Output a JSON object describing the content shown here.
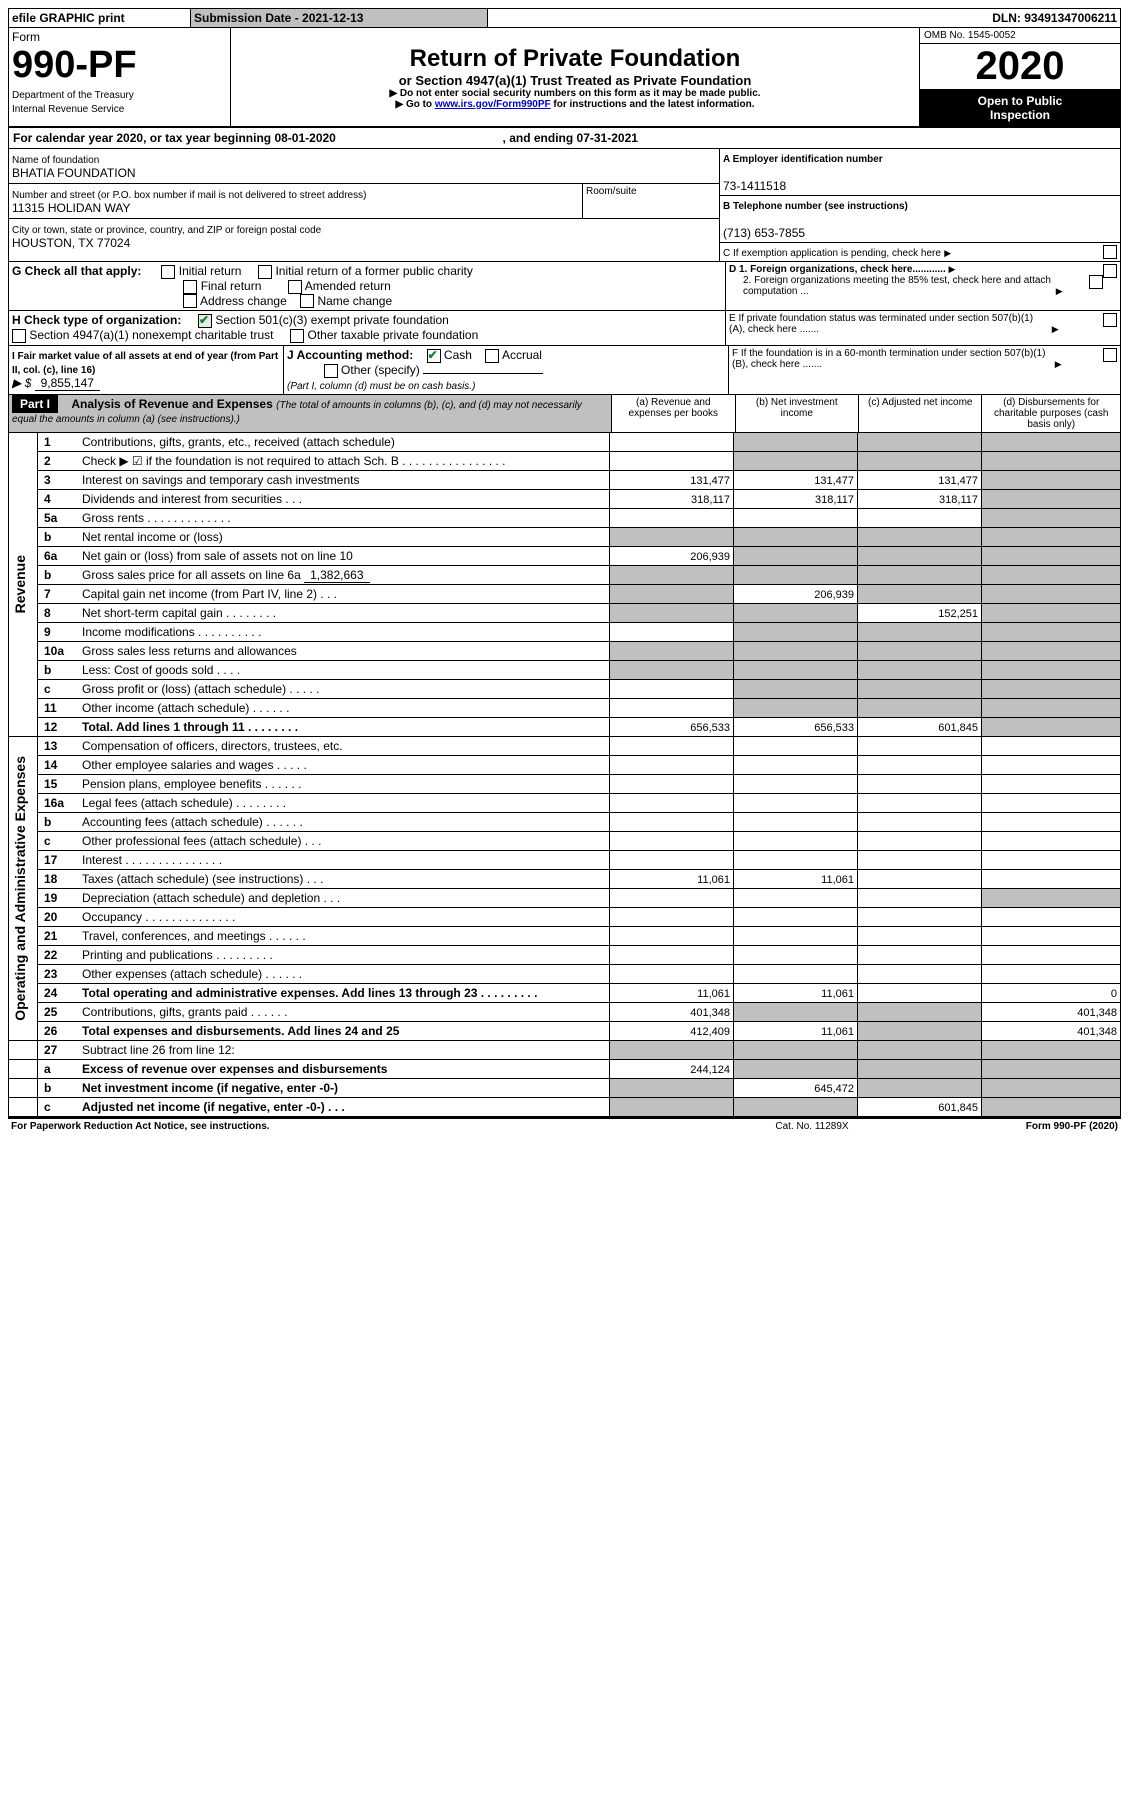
{
  "topbar": {
    "efile": "efile GRAPHIC print",
    "subdate_label": "Submission Date - ",
    "subdate": "2021-12-13",
    "dln_label": "DLN: ",
    "dln": "93491347006211"
  },
  "header": {
    "form_word": "Form",
    "form_number": "990-PF",
    "dept": "Department of the Treasury",
    "irs": "Internal Revenue Service",
    "title": "Return of Private Foundation",
    "subtitle": "or Section 4947(a)(1) Trust Treated as Private Foundation",
    "note1": "▶ Do not enter social security numbers on this form as it may be made public.",
    "note2_pre": "▶ Go to ",
    "note2_link": "www.irs.gov/Form990PF",
    "note2_post": " for instructions and the latest information.",
    "omb": "OMB No. 1545-0052",
    "year": "2020",
    "open": "Open to Public",
    "inspection": "Inspection"
  },
  "calendar": {
    "prefix": "For calendar year 2020, or tax year beginning ",
    "begin": "08-01-2020",
    "mid": " , and ending ",
    "end": "07-31-2021"
  },
  "entity": {
    "name_label": "Name of foundation",
    "name": "BHATIA FOUNDATION",
    "addr_label": "Number and street (or P.O. box number if mail is not delivered to street address)",
    "addr": "11315 HOLIDAN WAY",
    "room_label": "Room/suite",
    "city_label": "City or town, state or province, country, and ZIP or foreign postal code",
    "city": "HOUSTON, TX  77024",
    "ein_label": "A Employer identification number",
    "ein": "73-1411518",
    "phone_label": "B Telephone number (see instructions)",
    "phone": "(713) 653-7855",
    "c_label": "C If exemption application is pending, check here",
    "d1": "D 1. Foreign organizations, check here............",
    "d2": "2. Foreign organizations meeting the 85% test, check here and attach computation ...",
    "e_label": "E  If private foundation status was terminated under section 507(b)(1)(A), check here .......",
    "f_label": "F  If the foundation is in a 60-month termination under section 507(b)(1)(B), check here .......",
    "g_label": "G Check all that apply:",
    "g_opts": {
      "initial": "Initial return",
      "initial_pub": "Initial return of a former public charity",
      "final": "Final return",
      "amended": "Amended return",
      "addr_change": "Address change",
      "name_change": "Name change"
    },
    "h_label": "H Check type of organization:",
    "h_opts": {
      "501c3": "Section 501(c)(3) exempt private foundation",
      "4947": "Section 4947(a)(1) nonexempt charitable trust",
      "other_tax": "Other taxable private foundation"
    },
    "i_label": "I Fair market value of all assets at end of year (from Part II, col. (c), line 16)",
    "i_prefix": "▶ $",
    "i_value": "9,855,147",
    "j_label": "J Accounting method:",
    "j_cash": "Cash",
    "j_accrual": "Accrual",
    "j_other": "Other (specify)",
    "j_note": "(Part I, column (d) must be on cash basis.)"
  },
  "part1": {
    "label": "Part I",
    "heading": "Analysis of Revenue and Expenses",
    "heading_note": " (The total of amounts in columns (b), (c), and (d) may not necessarily equal the amounts in column (a) (see instructions).)",
    "cols": {
      "a": "(a) Revenue and expenses per books",
      "b": "(b) Net investment income",
      "c": "(c) Adjusted net income",
      "d": "(d) Disbursements for charitable purposes (cash basis only)"
    }
  },
  "sections": {
    "revenue": "Revenue",
    "opex": "Operating and Administrative Expenses"
  },
  "rows": {
    "1": {
      "n": "1",
      "t": "Contributions, gifts, grants, etc., received (attach schedule)"
    },
    "2": {
      "n": "2",
      "t": "Check ▶ ☑ if the foundation is not required to attach Sch. B   .  .  .  .  .  .  .  .  .  .  .  .  .  .  .  ."
    },
    "3": {
      "n": "3",
      "t": "Interest on savings and temporary cash investments",
      "a": "131,477",
      "b": "131,477",
      "c": "131,477"
    },
    "4": {
      "n": "4",
      "t": "Dividends and interest from securities    .   .   .",
      "a": "318,117",
      "b": "318,117",
      "c": "318,117"
    },
    "5a": {
      "n": "5a",
      "t": "Gross rents   .  .  .  .  .  .  .  .  .  .  .  .  ."
    },
    "5b": {
      "n": "b",
      "t": "Net rental income or (loss)"
    },
    "6a": {
      "n": "6a",
      "t": "Net gain or (loss) from sale of assets not on line 10",
      "a": "206,939"
    },
    "6b": {
      "n": "b",
      "t": "Gross sales price for all assets on line 6a",
      "inline": "1,382,663"
    },
    "7": {
      "n": "7",
      "t": "Capital gain net income (from Part IV, line 2)   .   .   .",
      "b": "206,939"
    },
    "8": {
      "n": "8",
      "t": "Net short-term capital gain  .  .  .  .  .  .  .  .",
      "c": "152,251"
    },
    "9": {
      "n": "9",
      "t": "Income modifications .  .  .  .  .  .  .  .  .  ."
    },
    "10a": {
      "n": "10a",
      "t": "Gross sales less returns and allowances"
    },
    "10b": {
      "n": "b",
      "t": "Less: Cost of goods sold    .   .   .   ."
    },
    "10c": {
      "n": "c",
      "t": "Gross profit or (loss) (attach schedule)    .   .   .   .   ."
    },
    "11": {
      "n": "11",
      "t": "Other income (attach schedule)   .  .  .  .  .  ."
    },
    "12": {
      "n": "12",
      "t": "Total. Add lines 1 through 11  .  .  .  .  .  .  .  .",
      "a": "656,533",
      "b": "656,533",
      "c": "601,845"
    },
    "13": {
      "n": "13",
      "t": "Compensation of officers, directors, trustees, etc."
    },
    "14": {
      "n": "14",
      "t": "Other employee salaries and wages  .  .  .  .  ."
    },
    "15": {
      "n": "15",
      "t": "Pension plans, employee benefits .  .  .  .  .  ."
    },
    "16a": {
      "n": "16a",
      "t": "Legal fees (attach schedule) .  .  .  .  .  .  .  ."
    },
    "16b": {
      "n": "b",
      "t": "Accounting fees (attach schedule) .  .  .  .  .  ."
    },
    "16c": {
      "n": "c",
      "t": "Other professional fees (attach schedule)   .   .   ."
    },
    "17": {
      "n": "17",
      "t": "Interest .  .  .  .  .  .  .  .  .  .  .  .  .  .  ."
    },
    "18": {
      "n": "18",
      "t": "Taxes (attach schedule) (see instructions)    .   .   .",
      "a": "11,061",
      "b": "11,061"
    },
    "19": {
      "n": "19",
      "t": "Depreciation (attach schedule) and depletion   .   .   ."
    },
    "20": {
      "n": "20",
      "t": "Occupancy .  .  .  .  .  .  .  .  .  .  .  .  .  ."
    },
    "21": {
      "n": "21",
      "t": "Travel, conferences, and meetings .  .  .  .  .  ."
    },
    "22": {
      "n": "22",
      "t": "Printing and publications .  .  .  .  .  .  .  .  ."
    },
    "23": {
      "n": "23",
      "t": "Other expenses (attach schedule) .  .  .  .  .  ."
    },
    "24": {
      "n": "24",
      "t": "Total operating and administrative expenses. Add lines 13 through 23  .  .  .  .  .  .  .  .  .",
      "a": "11,061",
      "b": "11,061",
      "d": "0"
    },
    "25": {
      "n": "25",
      "t": "Contributions, gifts, grants paid    .   .   .   .   .   .",
      "a": "401,348",
      "d": "401,348"
    },
    "26": {
      "n": "26",
      "t": "Total expenses and disbursements. Add lines 24 and 25",
      "a": "412,409",
      "b": "11,061",
      "d": "401,348"
    },
    "27": {
      "n": "27",
      "t": "Subtract line 26 from line 12:"
    },
    "27a": {
      "n": "a",
      "t": "Excess of revenue over expenses and disbursements",
      "a": "244,124"
    },
    "27b": {
      "n": "b",
      "t": "Net investment income (if negative, enter -0-)",
      "b": "645,472"
    },
    "27c": {
      "n": "c",
      "t": "Adjusted net income (if negative, enter -0-)   .   .   .",
      "c": "601,845"
    }
  },
  "footer": {
    "paperwork": "For Paperwork Reduction Act Notice, see instructions.",
    "catno": "Cat. No. 11289X",
    "formref": "Form 990-PF (2020)"
  }
}
